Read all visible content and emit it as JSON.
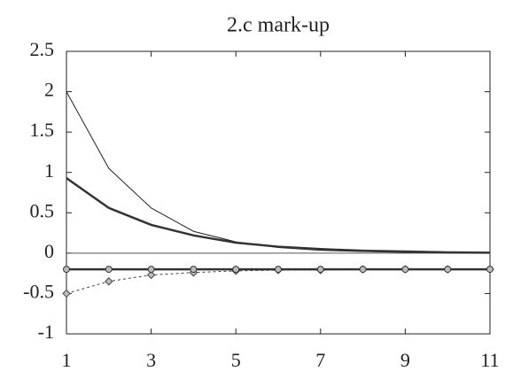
{
  "chart_data": {
    "type": "line",
    "title": "2.c mark-up",
    "x": [
      1,
      2,
      3,
      4,
      5,
      6,
      7,
      8,
      9,
      10,
      11
    ],
    "series": [
      {
        "color": "#222222",
        "width": 1,
        "values": [
          2,
          1.05,
          0.56,
          0.27,
          0.14,
          0.07,
          0.035,
          0.02,
          0.01,
          0.005,
          0
        ]
      },
      {
        "color": "#333333",
        "width": 2.5,
        "values": [
          0.93,
          0.56,
          0.35,
          0.22,
          0.13,
          0.08,
          0.05,
          0.03,
          0.02,
          0.01,
          0.005
        ]
      },
      {
        "color": "#444444",
        "width": 1,
        "dash": true,
        "marker": "diamond",
        "values": [
          -0.5,
          -0.35,
          -0.27,
          -0.24,
          -0.22,
          -0.21,
          -0.21,
          -0.2,
          -0.2,
          -0.2,
          -0.2
        ]
      },
      {
        "color": "#333333",
        "width": 2.5,
        "marker": "circle",
        "values": [
          -0.2,
          -0.2,
          -0.2,
          -0.2,
          -0.2,
          -0.2,
          -0.2,
          -0.2,
          -0.2,
          -0.2,
          -0.2
        ]
      }
    ],
    "xlim": [
      1,
      11
    ],
    "xticks": [
      1,
      3,
      5,
      7,
      9,
      11
    ],
    "ylim": [
      -1,
      2.5
    ],
    "yticks": [
      -1,
      -0.5,
      0,
      0.5,
      1,
      1.5,
      2,
      2.5
    ],
    "zero_line": true
  }
}
